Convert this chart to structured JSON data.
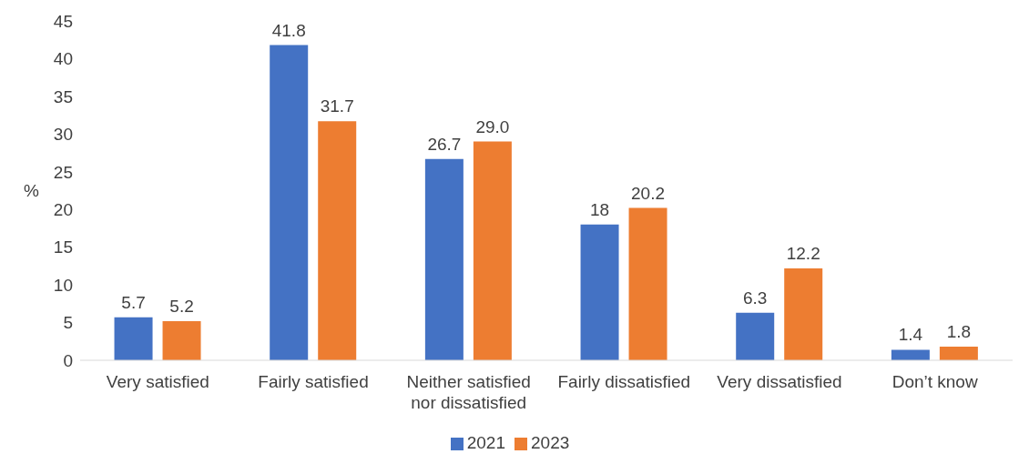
{
  "chart_data": {
    "type": "bar",
    "ylabel": "%",
    "categories": [
      "Very satisfied",
      "Fairly satisfied",
      "Neither satisfied nor dissatisfied",
      "Fairly dissatisfied",
      "Very dissatisfied",
      "Don’t know"
    ],
    "series": [
      {
        "name": "2021",
        "color": "#4472c4",
        "values": [
          5.7,
          41.8,
          26.7,
          18,
          6.3,
          1.4
        ],
        "value_labels": [
          "5.7",
          "41.8",
          "26.7",
          "18",
          "6.3",
          "1.4"
        ]
      },
      {
        "name": "2023",
        "color": "#ed7d31",
        "values": [
          5.2,
          31.7,
          29.0,
          20.2,
          12.2,
          1.8
        ],
        "value_labels": [
          "5.2",
          "31.7",
          "29.0",
          "20.2",
          "12.2",
          "1.8"
        ]
      }
    ],
    "ylim": [
      0,
      45
    ],
    "yticks": [
      0,
      5,
      10,
      15,
      20,
      25,
      30,
      35,
      40,
      45
    ],
    "grid": false,
    "legend": "bottom"
  }
}
